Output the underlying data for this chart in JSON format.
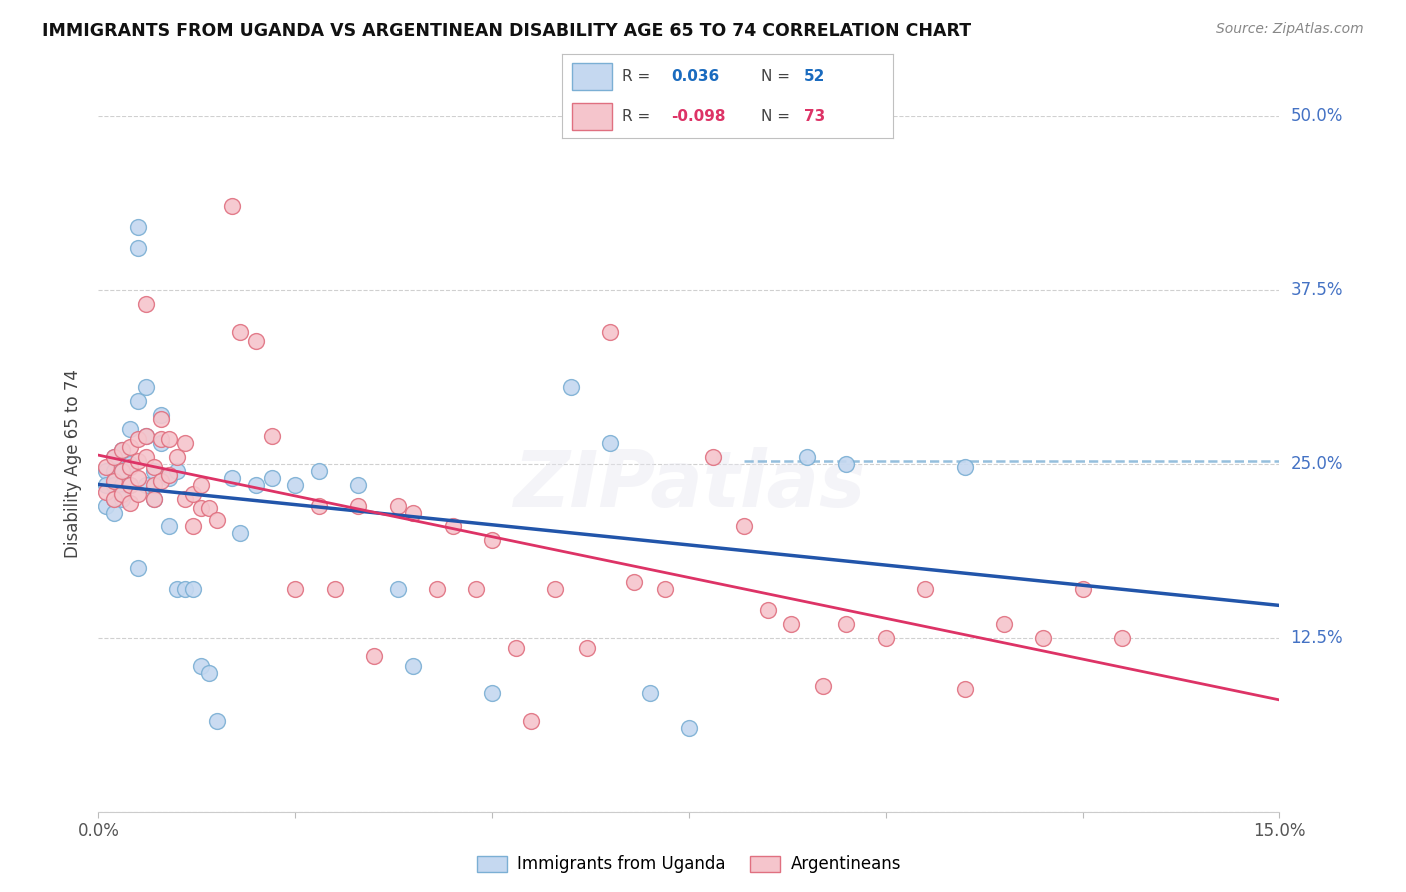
{
  "title": "IMMIGRANTS FROM UGANDA VS ARGENTINEAN DISABILITY AGE 65 TO 74 CORRELATION CHART",
  "source": "Source: ZipAtlas.com",
  "ylabel": "Disability Age 65 to 74",
  "xlim": [
    0.0,
    0.15
  ],
  "ylim": [
    0.0,
    0.5
  ],
  "grid_color": "#d0d0d0",
  "background_color": "#ffffff",
  "uganda_fill": "#c5d8f0",
  "uganda_edge": "#7bafd4",
  "argentina_fill": "#f5c5cc",
  "argentina_edge": "#e07080",
  "trend_uganda_color": "#2255aa",
  "trend_argentina_color": "#dd3366",
  "tick_color": "#4472c4",
  "legend_label_uganda": "Immigrants from Uganda",
  "legend_label_argentina": "Argentineans",
  "uganda_x": [
    0.001,
    0.001,
    0.001,
    0.002,
    0.002,
    0.002,
    0.002,
    0.002,
    0.003,
    0.003,
    0.003,
    0.003,
    0.004,
    0.004,
    0.004,
    0.005,
    0.005,
    0.005,
    0.005,
    0.006,
    0.006,
    0.006,
    0.007,
    0.007,
    0.008,
    0.008,
    0.009,
    0.009,
    0.01,
    0.01,
    0.011,
    0.012,
    0.013,
    0.014,
    0.015,
    0.017,
    0.018,
    0.02,
    0.022,
    0.025,
    0.028,
    0.033,
    0.038,
    0.04,
    0.05,
    0.06,
    0.065,
    0.07,
    0.075,
    0.09,
    0.095,
    0.11
  ],
  "uganda_y": [
    0.245,
    0.235,
    0.22,
    0.255,
    0.245,
    0.235,
    0.225,
    0.215,
    0.26,
    0.245,
    0.235,
    0.225,
    0.275,
    0.25,
    0.235,
    0.42,
    0.405,
    0.295,
    0.175,
    0.305,
    0.27,
    0.235,
    0.245,
    0.225,
    0.285,
    0.265,
    0.24,
    0.205,
    0.245,
    0.16,
    0.16,
    0.16,
    0.105,
    0.1,
    0.065,
    0.24,
    0.2,
    0.235,
    0.24,
    0.235,
    0.245,
    0.235,
    0.16,
    0.105,
    0.085,
    0.305,
    0.265,
    0.085,
    0.06,
    0.255,
    0.25,
    0.248
  ],
  "argentina_x": [
    0.001,
    0.001,
    0.002,
    0.002,
    0.002,
    0.003,
    0.003,
    0.003,
    0.004,
    0.004,
    0.004,
    0.004,
    0.005,
    0.005,
    0.005,
    0.005,
    0.006,
    0.006,
    0.006,
    0.007,
    0.007,
    0.007,
    0.008,
    0.008,
    0.008,
    0.009,
    0.009,
    0.01,
    0.011,
    0.011,
    0.012,
    0.012,
    0.013,
    0.013,
    0.014,
    0.015,
    0.017,
    0.018,
    0.02,
    0.022,
    0.025,
    0.028,
    0.03,
    0.033,
    0.035,
    0.038,
    0.04,
    0.043,
    0.045,
    0.048,
    0.05,
    0.053,
    0.055,
    0.058,
    0.062,
    0.065,
    0.068,
    0.072,
    0.078,
    0.082,
    0.085,
    0.088,
    0.092,
    0.095,
    0.1,
    0.105,
    0.11,
    0.115,
    0.12,
    0.125,
    0.13
  ],
  "argentina_y": [
    0.248,
    0.23,
    0.255,
    0.238,
    0.225,
    0.26,
    0.245,
    0.228,
    0.262,
    0.248,
    0.235,
    0.222,
    0.268,
    0.252,
    0.24,
    0.228,
    0.365,
    0.27,
    0.255,
    0.248,
    0.235,
    0.225,
    0.282,
    0.268,
    0.238,
    0.268,
    0.242,
    0.255,
    0.265,
    0.225,
    0.228,
    0.205,
    0.235,
    0.218,
    0.218,
    0.21,
    0.435,
    0.345,
    0.338,
    0.27,
    0.16,
    0.22,
    0.16,
    0.22,
    0.112,
    0.22,
    0.215,
    0.16,
    0.205,
    0.16,
    0.195,
    0.118,
    0.065,
    0.16,
    0.118,
    0.345,
    0.165,
    0.16,
    0.255,
    0.205,
    0.145,
    0.135,
    0.09,
    0.135,
    0.125,
    0.16,
    0.088,
    0.135,
    0.125,
    0.16,
    0.125
  ]
}
